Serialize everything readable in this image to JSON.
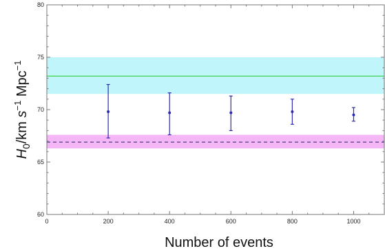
{
  "chart_data": {
    "type": "scatter",
    "title": "",
    "xlabel": "Number of events",
    "ylabel": "H0/km s^-1 Mpc^-1",
    "ylabel_parts": {
      "H": "H",
      "sub": "0",
      "mid": "/km ",
      "s": "s",
      "exp1": "−1",
      "unit": " Mpc",
      "exp2": "−1"
    },
    "xlim": [
      0,
      1100
    ],
    "ylim": [
      60,
      80
    ],
    "xticks": [
      0,
      200,
      400,
      600,
      800,
      1000
    ],
    "yticks": [
      60,
      65,
      70,
      75,
      80
    ],
    "x_tick_labels": [
      "0",
      "200",
      "400",
      "600",
      "800",
      "1000"
    ],
    "y_tick_labels": [
      "60",
      "65",
      "70",
      "75",
      "80"
    ],
    "series": [
      {
        "color": "#2a2ab0",
        "points": [
          {
            "x": 200,
            "y": 69.8,
            "lower": 67.3,
            "upper": 72.4
          },
          {
            "x": 400,
            "y": 69.7,
            "lower": 67.6,
            "upper": 71.6
          },
          {
            "x": 600,
            "y": 69.7,
            "lower": 68.0,
            "upper": 71.3
          },
          {
            "x": 800,
            "y": 69.8,
            "lower": 68.6,
            "upper": 71.0
          },
          {
            "x": 1000,
            "y": 69.5,
            "lower": 68.9,
            "upper": 70.2
          }
        ]
      }
    ],
    "bands": [
      {
        "y_low": 71.5,
        "y_high": 75.0,
        "color": "#bff5fb",
        "line_y": 73.2,
        "line_color": "#44d04a",
        "line_style": "solid"
      },
      {
        "y_low": 66.3,
        "y_high": 67.6,
        "color": "#f4b6f4",
        "line_y": 66.9,
        "line_color": "#4a3a8a",
        "line_style": "dashed"
      }
    ],
    "grid": false
  }
}
